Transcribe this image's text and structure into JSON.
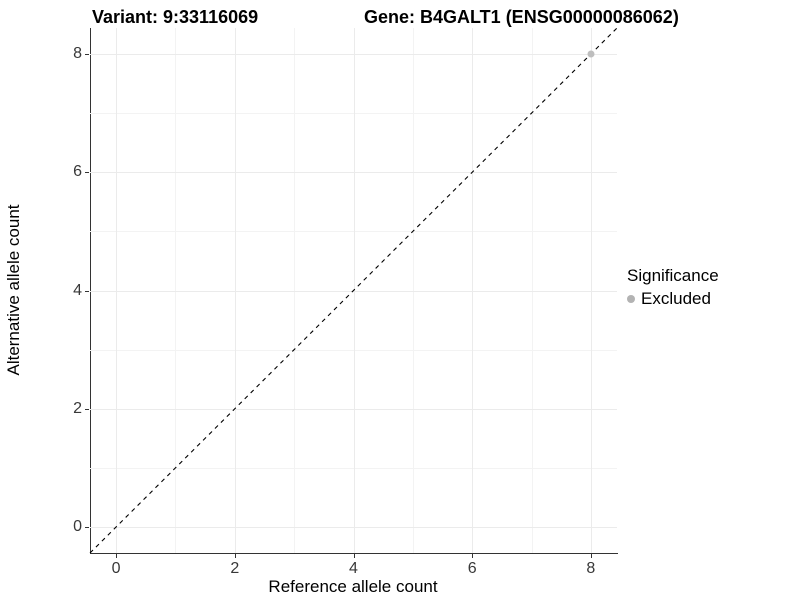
{
  "title": {
    "left": "Variant: 9:33116069",
    "right": "Gene: B4GALT1 (ENSG00000086062)"
  },
  "chart_data": {
    "type": "scatter",
    "title": "Variant: 9:33116069    Gene: B4GALT1 (ENSG00000086062)",
    "xlabel": "Reference allele count",
    "ylabel": "Alternative allele count",
    "xlim": [
      -0.44,
      8.44
    ],
    "ylim": [
      -0.44,
      8.44
    ],
    "x_major_ticks": [
      0,
      2,
      4,
      6,
      8
    ],
    "y_major_ticks": [
      0,
      2,
      4,
      6,
      8
    ],
    "x_minor_ticks": [
      1,
      3,
      5,
      7
    ],
    "y_minor_ticks": [
      1,
      3,
      5,
      7
    ],
    "grid": true,
    "identity_line": {
      "slope": 1,
      "intercept": 0,
      "linetype": "dashed",
      "color": "#000000"
    },
    "series": [
      {
        "name": "Excluded",
        "color": "#bebebe",
        "points": [
          {
            "x": 8,
            "y": 8
          }
        ]
      }
    ],
    "legend": {
      "title": "Significance",
      "position": "right",
      "entries": [
        {
          "label": "Excluded",
          "color": "#b3b3b3"
        }
      ]
    }
  },
  "colors": {
    "background": "#ffffff",
    "grid_major": "#ebebeb",
    "grid_minor": "#f3f3f3",
    "axis_line": "#333333",
    "tick_label": "#383838",
    "point_gray": "#bebebe"
  }
}
